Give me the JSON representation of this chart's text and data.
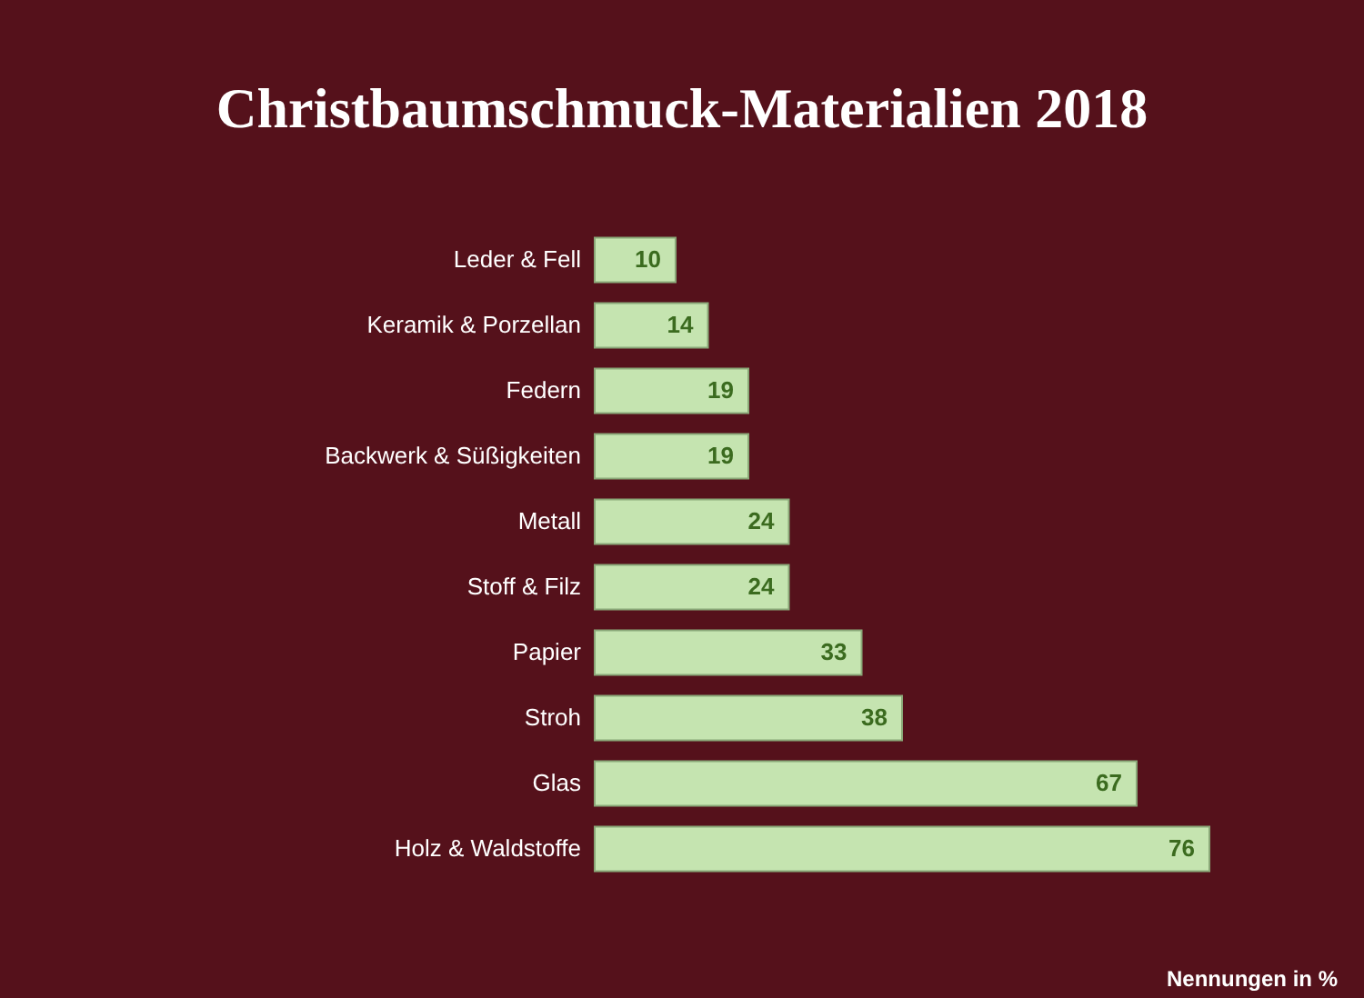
{
  "chart_data": {
    "type": "bar",
    "orientation": "horizontal",
    "title": "Christbaumschmuck-Materialien 2018",
    "categories": [
      "Leder & Fell",
      "Keramik & Porzellan",
      "Federn",
      "Backwerk & Süßigkeiten",
      "Metall",
      "Stoff & Filz",
      "Papier",
      "Stroh",
      "Glas",
      "Holz & Waldstoffe"
    ],
    "values": [
      10,
      14,
      19,
      19,
      24,
      24,
      33,
      38,
      67,
      76
    ],
    "color": "#c5e4b0",
    "data_labels": true,
    "annotations": [
      "Nennungen in %"
    ]
  }
}
